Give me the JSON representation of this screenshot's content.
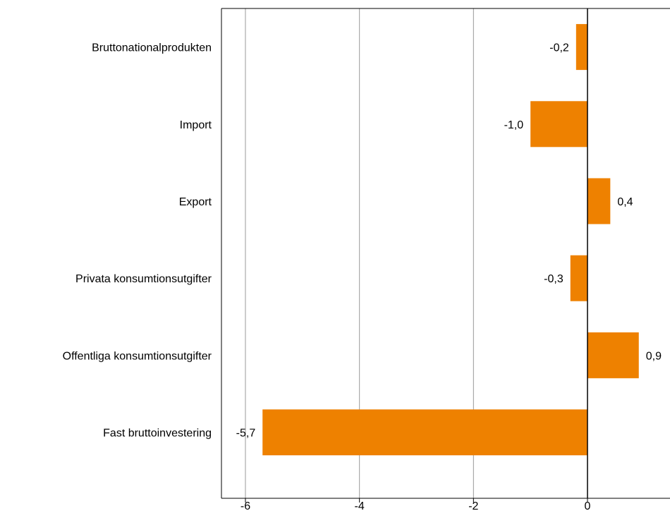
{
  "chart_data": {
    "type": "bar",
    "orientation": "horizontal",
    "title": "",
    "xlabel": "",
    "ylabel": "",
    "categories": [
      "Bruttonationalprodukten",
      "Import",
      "Export",
      "Privata konsumtionsutgifter",
      "Offentliga konsumtionsutgifter",
      "Fast bruttoinvestering"
    ],
    "values": [
      -0.2,
      -1.0,
      0.4,
      -0.3,
      0.9,
      -5.7
    ],
    "value_labels": [
      "-0,2",
      "-1,0",
      "0,4",
      "-0,3",
      "0,9",
      "-5,7"
    ],
    "xlim": [
      -6.4,
      1.3
    ],
    "xticks": [
      -6,
      -4,
      -2,
      0
    ],
    "xtick_labels": [
      "-6",
      "-4",
      "-2",
      "0"
    ],
    "grid": true,
    "bar_color": "#ee8100",
    "grid_color": "#999999"
  }
}
